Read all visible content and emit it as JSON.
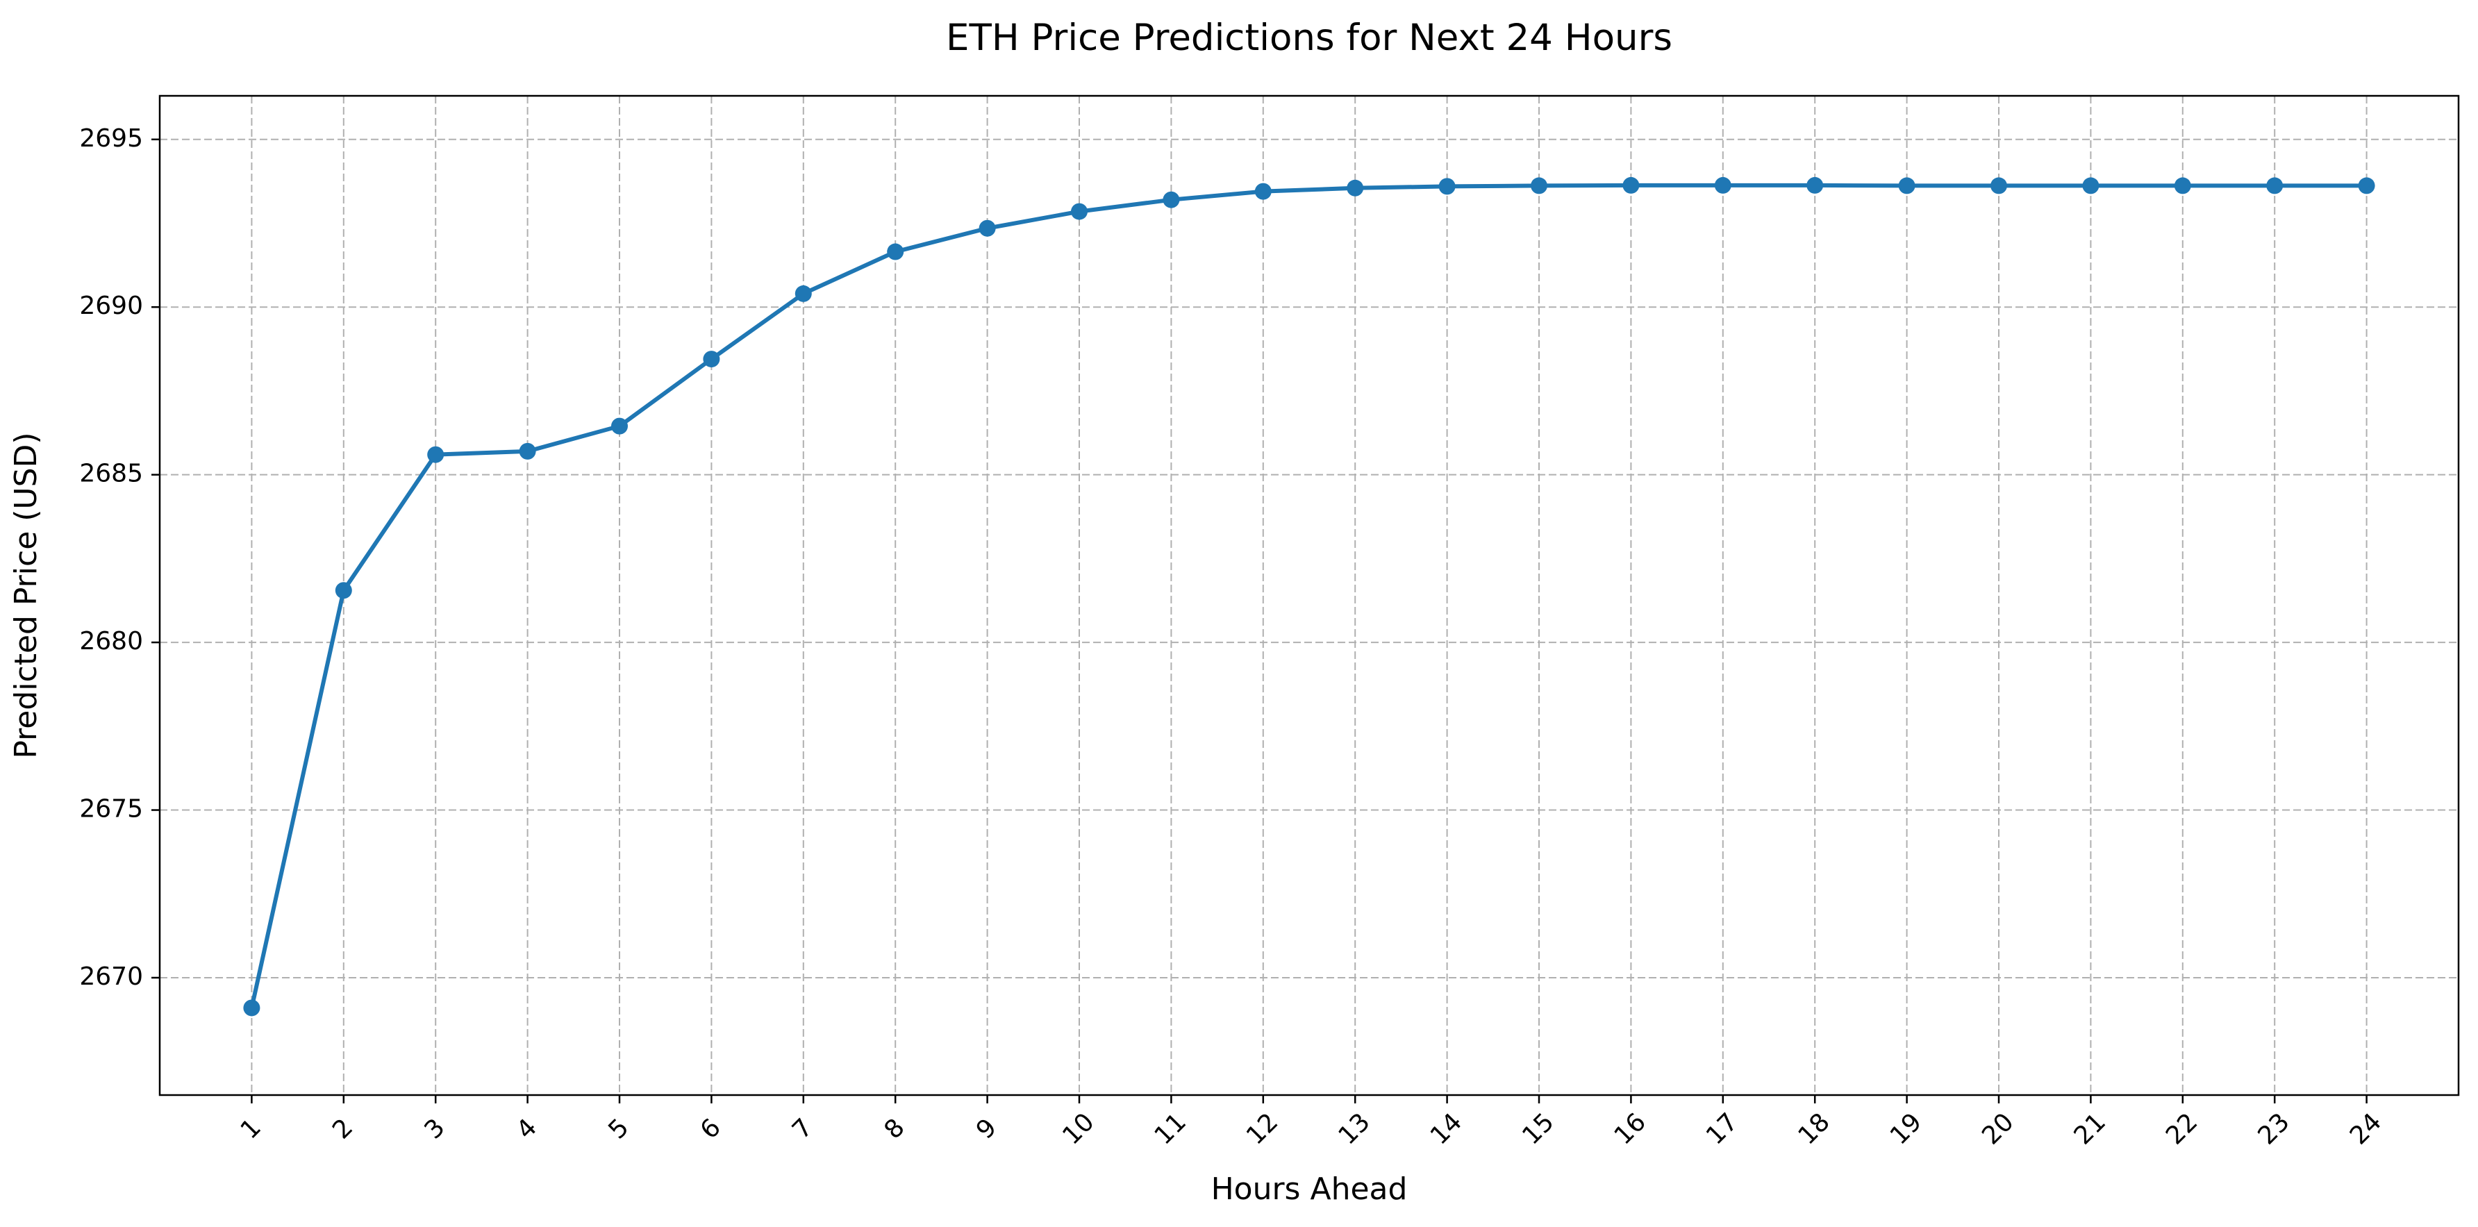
{
  "chart_data": {
    "type": "line",
    "title": "ETH Price Predictions for Next 24 Hours",
    "xlabel": "Hours Ahead",
    "ylabel": "Predicted Price (USD)",
    "x": [
      1,
      2,
      3,
      4,
      5,
      6,
      7,
      8,
      9,
      10,
      11,
      12,
      13,
      14,
      15,
      16,
      17,
      18,
      19,
      20,
      21,
      22,
      23,
      24
    ],
    "xticks": [
      "1",
      "2",
      "3",
      "4",
      "5",
      "6",
      "7",
      "8",
      "9",
      "10",
      "11",
      "12",
      "13",
      "14",
      "15",
      "16",
      "17",
      "18",
      "19",
      "20",
      "21",
      "22",
      "23",
      "24"
    ],
    "xlim": [
      0.0,
      25.0
    ],
    "yticks": [
      2670,
      2675,
      2680,
      2685,
      2690,
      2695
    ],
    "ylim": [
      2666.5,
      2696.3
    ],
    "series": [
      {
        "values": [
          2669.1,
          2681.55,
          2685.6,
          2685.7,
          2686.45,
          2688.45,
          2690.4,
          2691.65,
          2692.35,
          2692.85,
          2693.2,
          2693.45,
          2693.55,
          2693.6,
          2693.62,
          2693.63,
          2693.63,
          2693.63,
          2693.62,
          2693.62,
          2693.62,
          2693.62,
          2693.62,
          2693.62
        ],
        "color": "#1f77b4",
        "marker": "circle"
      }
    ],
    "grid": true,
    "grid_style": "dashed",
    "grid_color": "#b0b0b0",
    "legend": false,
    "xtick_rotation": 45
  }
}
